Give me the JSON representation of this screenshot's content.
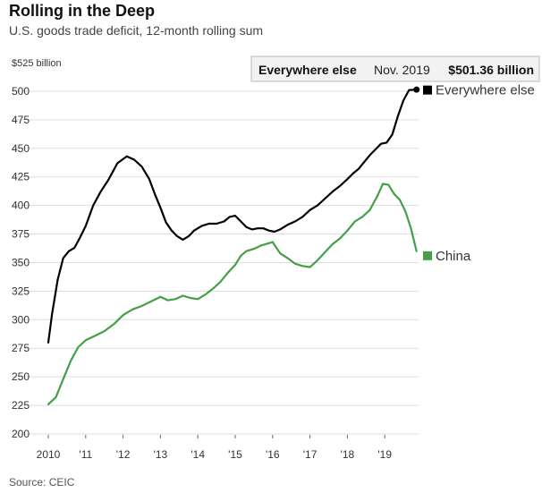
{
  "title": "Rolling in the Deep",
  "subtitle": "U.S. goods trade deficit, 12-month rolling sum",
  "source": "Source: CEIC",
  "colors": {
    "everywhere": "#000000",
    "china": "#43a047",
    "grid": "#dddddd"
  },
  "tooltip": {
    "series": "Everywhere else",
    "date": "Nov. 2019",
    "value": "$501.36 billion"
  },
  "chart_data": {
    "type": "line",
    "title": "Rolling in the Deep",
    "ylabel": "$525 billion",
    "ylim": [
      200,
      525
    ],
    "xlim": [
      2010,
      2020
    ],
    "yticks": [
      525,
      500,
      475,
      450,
      425,
      400,
      375,
      350,
      325,
      300,
      275,
      250,
      225,
      200
    ],
    "ytick_labels": [
      "$525 billion",
      "500",
      "475",
      "450",
      "425",
      "400",
      "375",
      "350",
      "325",
      "300",
      "275",
      "250",
      "225",
      "200"
    ],
    "xticks": [
      2010,
      2011,
      2012,
      2013,
      2014,
      2015,
      2016,
      2017,
      2018,
      2019
    ],
    "xtick_labels": [
      "2010",
      "'11",
      "'12",
      "'13",
      "'14",
      "'15",
      "'16",
      "'17",
      "'18",
      "'19"
    ],
    "grid": "horizontal",
    "series": [
      {
        "name": "Everywhere else",
        "x": [
          2010.0,
          2010.1,
          2010.25,
          2010.4,
          2010.55,
          2010.7,
          2010.85,
          2011.0,
          2011.2,
          2011.4,
          2011.6,
          2011.85,
          2012.1,
          2012.3,
          2012.5,
          2012.7,
          2012.85,
          2013.0,
          2013.15,
          2013.3,
          2013.45,
          2013.6,
          2013.75,
          2013.9,
          2014.1,
          2014.3,
          2014.5,
          2014.7,
          2014.85,
          2015.0,
          2015.15,
          2015.3,
          2015.45,
          2015.6,
          2015.75,
          2015.9,
          2016.05,
          2016.2,
          2016.4,
          2016.6,
          2016.8,
          2017.0,
          2017.2,
          2017.4,
          2017.6,
          2017.8,
          2018.0,
          2018.15,
          2018.3,
          2018.45,
          2018.6,
          2018.75,
          2018.9,
          2019.05,
          2019.2,
          2019.35,
          2019.5,
          2019.65,
          2019.85
        ],
        "values": [
          280,
          305,
          335,
          354,
          360,
          363,
          372,
          382,
          400,
          412,
          422,
          437,
          443,
          440,
          434,
          423,
          410,
          398,
          385,
          378,
          373,
          370,
          373,
          378,
          382,
          384,
          384,
          386,
          390,
          391,
          386,
          381,
          379,
          380,
          380,
          378,
          377,
          379,
          383,
          386,
          390,
          396,
          400,
          406,
          412,
          417,
          423,
          428,
          432,
          438,
          444,
          449,
          454,
          455,
          462,
          478,
          492,
          501,
          501.36
        ]
      },
      {
        "name": "China",
        "x": [
          2010.0,
          2010.2,
          2010.4,
          2010.6,
          2010.8,
          2011.0,
          2011.25,
          2011.5,
          2011.75,
          2012.0,
          2012.25,
          2012.5,
          2012.75,
          2013.0,
          2013.2,
          2013.4,
          2013.6,
          2013.8,
          2014.0,
          2014.2,
          2014.4,
          2014.6,
          2014.8,
          2015.0,
          2015.15,
          2015.3,
          2015.5,
          2015.7,
          2015.9,
          2016.0,
          2016.2,
          2016.4,
          2016.6,
          2016.8,
          2017.0,
          2017.2,
          2017.4,
          2017.6,
          2017.8,
          2018.0,
          2018.2,
          2018.4,
          2018.6,
          2018.8,
          2018.95,
          2019.1,
          2019.25,
          2019.4,
          2019.55,
          2019.7,
          2019.85
        ],
        "values": [
          226,
          232,
          248,
          264,
          276,
          282,
          286,
          290,
          296,
          304,
          309,
          312,
          316,
          320,
          317,
          318,
          321,
          319,
          318,
          322,
          327,
          333,
          341,
          348,
          356,
          360,
          362,
          365,
          367,
          368,
          358,
          354,
          349,
          347,
          346,
          352,
          359,
          366,
          371,
          378,
          386,
          390,
          396,
          408,
          419,
          418,
          410,
          405,
          395,
          380,
          360
        ]
      }
    ]
  }
}
